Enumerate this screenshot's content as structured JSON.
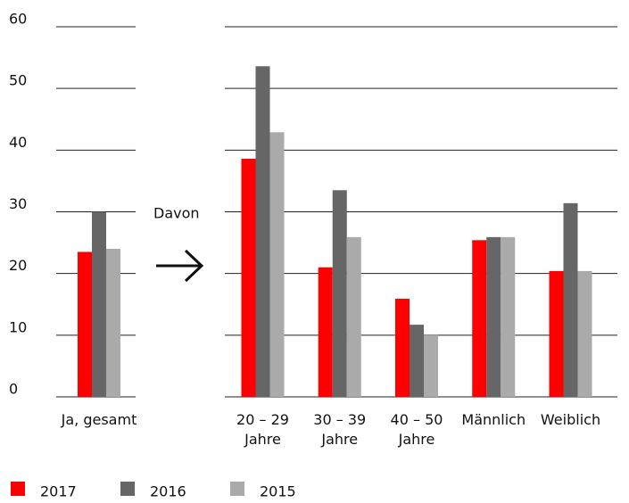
{
  "chart_data": {
    "type": "bar",
    "categories": [
      "Ja, gesamt",
      "20 – 29 Jahre",
      "30 – 39 Jahre",
      "40 – 50 Jahre",
      "Männlich",
      "Weiblich"
    ],
    "series": [
      {
        "name": "2017",
        "color": "#ff0000",
        "values": [
          23.5,
          38.6,
          21,
          15.9,
          25.4,
          20.4
        ]
      },
      {
        "name": "2016",
        "color": "#666666",
        "values": [
          30,
          53.6,
          33.5,
          11.7,
          25.9,
          31.4
        ]
      },
      {
        "name": "2015",
        "color": "#aaaaaa",
        "values": [
          24,
          42.9,
          25.9,
          10,
          25.9,
          20.4
        ]
      }
    ],
    "annotation": "Davon",
    "ylim": [
      0,
      60
    ],
    "yticks": [
      0,
      10,
      20,
      30,
      40,
      50,
      60
    ],
    "grid": true,
    "legend": "bottom"
  }
}
